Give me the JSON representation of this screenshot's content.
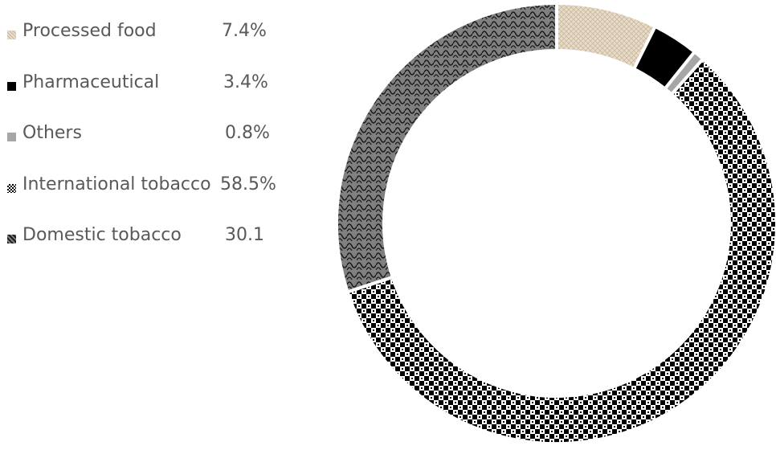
{
  "chart_data": {
    "type": "pie",
    "subtype": "donut",
    "legend_position": "left",
    "slices": [
      {
        "label": "Processed food",
        "value": 7.4,
        "display": "7.4%",
        "pattern": "crosshatch",
        "color": "#e8dccb",
        "color_dark": "#c9b89c"
      },
      {
        "label": "Pharmaceutical",
        "value": 3.4,
        "display": "3.4%",
        "pattern": "solid",
        "color": "#000000",
        "color_dark": "#000000"
      },
      {
        "label": "Others",
        "value": 0.8,
        "display": "0.8%",
        "pattern": "solid",
        "color": "#a6a6a6",
        "color_dark": "#a6a6a6"
      },
      {
        "label": "International tobacco",
        "value": 58.5,
        "display": "58.5%",
        "pattern": "checker",
        "color": "#ffffff",
        "color_dark": "#000000"
      },
      {
        "label": "Domestic tobacco",
        "value": 30.1,
        "display": "30.1",
        "pattern": "weave",
        "color": "#808080",
        "color_dark": "#1a1a1a"
      }
    ]
  }
}
